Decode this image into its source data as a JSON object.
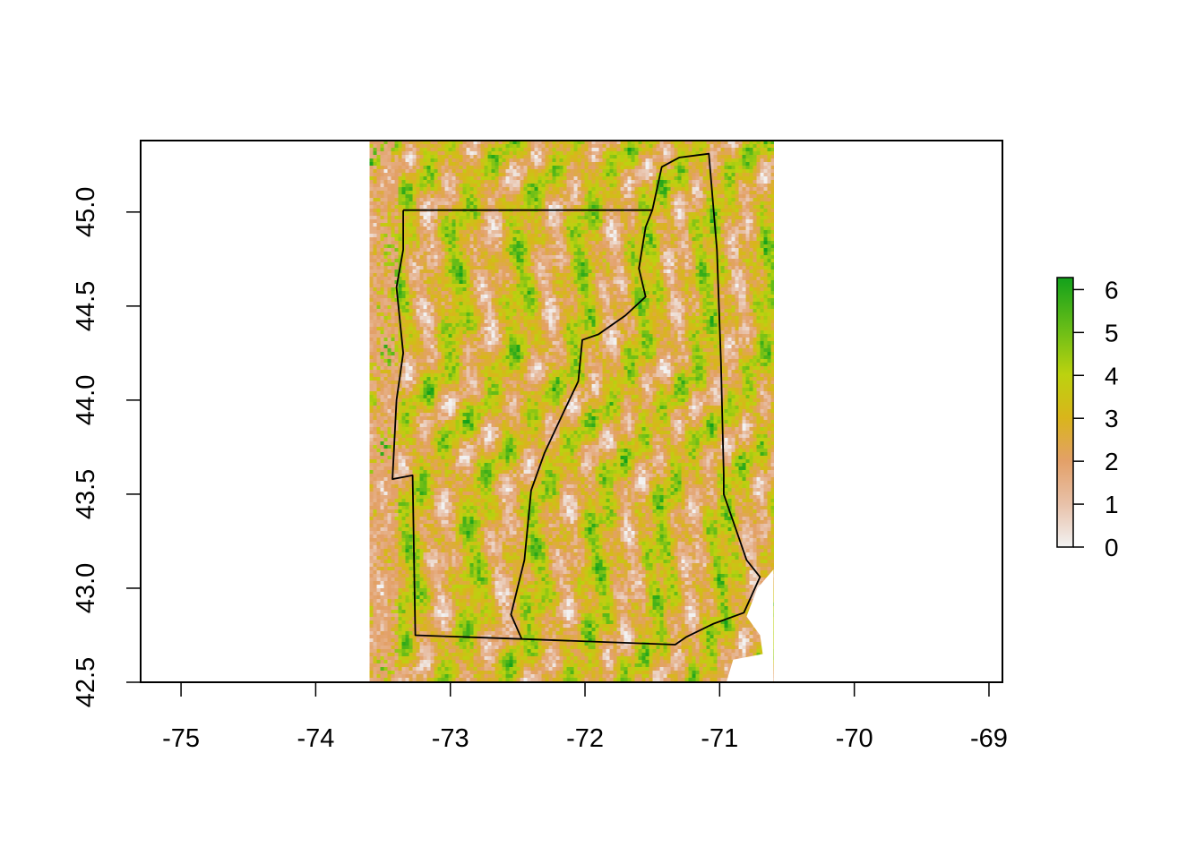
{
  "chart_data": {
    "type": "heatmap",
    "title": "",
    "xlabel": "",
    "ylabel": "",
    "xlim": [
      -75.3,
      -68.9
    ],
    "ylim": [
      42.5,
      45.38
    ],
    "x_ticks": [
      {
        "value": -75,
        "label": "-75"
      },
      {
        "value": -74,
        "label": "-74"
      },
      {
        "value": -73,
        "label": "-73"
      },
      {
        "value": -72,
        "label": "-72"
      },
      {
        "value": -71,
        "label": "-71"
      },
      {
        "value": -70,
        "label": "-70"
      },
      {
        "value": -69,
        "label": "-69"
      }
    ],
    "y_ticks": [
      {
        "value": 42.5,
        "label": "42.5"
      },
      {
        "value": 43.0,
        "label": "43.0"
      },
      {
        "value": 43.5,
        "label": "43.5"
      },
      {
        "value": 44.0,
        "label": "44.0"
      },
      {
        "value": 44.5,
        "label": "44.5"
      },
      {
        "value": 45.0,
        "label": "45.0"
      }
    ],
    "raster_extent": {
      "xmin": -73.6,
      "xmax": -70.6,
      "ymin": 42.5,
      "ymax": 45.38
    },
    "value_range": [
      0,
      6.28
    ],
    "legend": {
      "placement": "right",
      "ticks": [
        {
          "value": 0,
          "label": "0"
        },
        {
          "value": 1,
          "label": "1"
        },
        {
          "value": 2,
          "label": "2"
        },
        {
          "value": 3,
          "label": "3"
        },
        {
          "value": 4,
          "label": "4"
        },
        {
          "value": 5,
          "label": "5"
        },
        {
          "value": 6,
          "label": "6"
        }
      ],
      "colors": [
        "#F2F2F2",
        "#E8C1A9",
        "#E3A068",
        "#D9B51B",
        "#BCD20F",
        "#6DBE17",
        "#12A11B"
      ]
    },
    "boundary": {
      "vermont": [
        [
          -73.35,
          45.01
        ],
        [
          -71.5,
          45.01
        ],
        [
          -71.55,
          44.92
        ],
        [
          -71.6,
          44.7
        ],
        [
          -71.55,
          44.55
        ],
        [
          -71.7,
          44.45
        ],
        [
          -71.9,
          44.35
        ],
        [
          -72.02,
          44.32
        ],
        [
          -72.05,
          44.1
        ],
        [
          -72.15,
          43.95
        ],
        [
          -72.3,
          43.72
        ],
        [
          -72.4,
          43.52
        ],
        [
          -72.45,
          43.15
        ],
        [
          -72.55,
          42.86
        ],
        [
          -72.47,
          42.73
        ],
        [
          -73.26,
          42.75
        ],
        [
          -73.28,
          43.6
        ],
        [
          -73.43,
          43.58
        ],
        [
          -73.4,
          44.0
        ],
        [
          -73.35,
          44.25
        ],
        [
          -73.4,
          44.6
        ],
        [
          -73.35,
          44.8
        ],
        [
          -73.35,
          45.01
        ]
      ],
      "new_hampshire": [
        [
          -71.5,
          45.01
        ],
        [
          -71.43,
          45.24
        ],
        [
          -71.3,
          45.29
        ],
        [
          -71.08,
          45.31
        ],
        [
          -71.02,
          44.8
        ],
        [
          -70.99,
          44.2
        ],
        [
          -70.97,
          43.6
        ],
        [
          -70.97,
          43.5
        ],
        [
          -70.8,
          43.15
        ],
        [
          -70.7,
          43.06
        ],
        [
          -70.82,
          42.87
        ],
        [
          -71.05,
          42.81
        ],
        [
          -71.25,
          42.74
        ],
        [
          -71.33,
          42.7
        ],
        [
          -72.47,
          42.73
        ]
      ]
    }
  }
}
